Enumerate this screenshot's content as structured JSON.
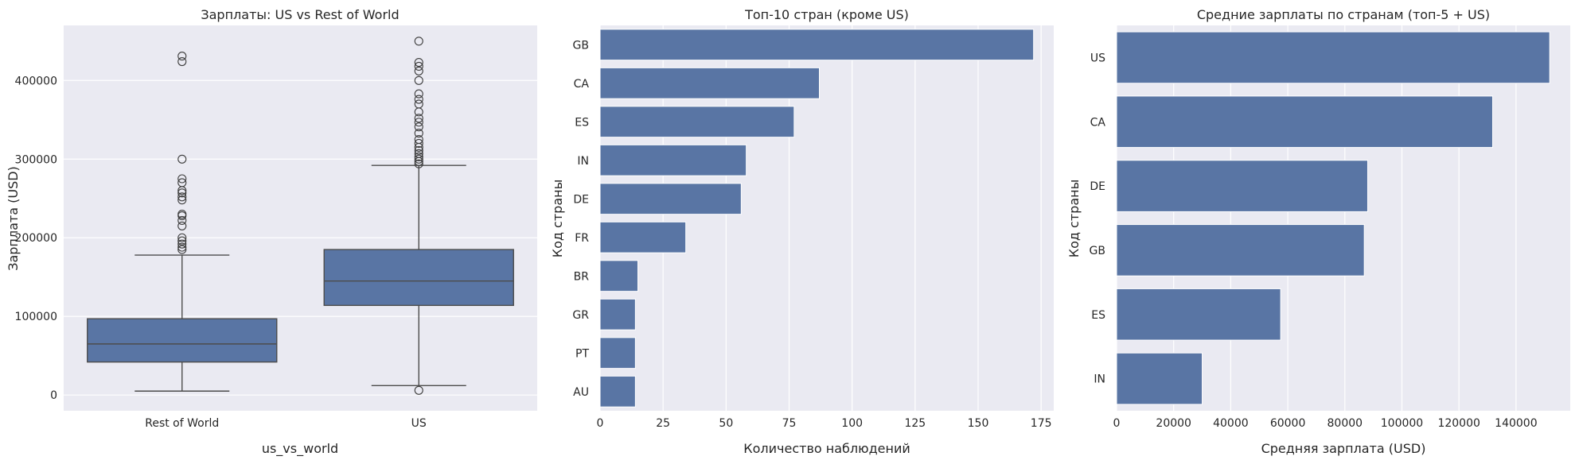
{
  "chart_data": [
    {
      "type": "box",
      "title": "Зарплаты: US vs Rest of World",
      "xlabel": "us_vs_world",
      "ylabel": "Зарплата (USD)",
      "ylim": [
        -20000,
        470000
      ],
      "yticks": [
        0,
        100000,
        200000,
        300000,
        400000
      ],
      "categories": [
        "Rest of World",
        "US"
      ],
      "boxes": [
        {
          "category": "Rest of World",
          "whisker_low": 5000,
          "q1": 42000,
          "median": 65000,
          "q3": 97000,
          "whisker_high": 178000,
          "outliers": [
            185000,
            188000,
            192000,
            196000,
            200000,
            215000,
            222000,
            228000,
            230000,
            248000,
            252000,
            257000,
            260000,
            270000,
            275000,
            300000,
            424000,
            431000
          ]
        },
        {
          "category": "US",
          "whisker_low": 12000,
          "q1": 114000,
          "median": 145000,
          "q3": 185000,
          "whisker_high": 292000,
          "outliers": [
            6000,
            294000,
            297000,
            300000,
            303000,
            307000,
            311000,
            315000,
            320000,
            325000,
            333000,
            341000,
            347000,
            352000,
            360000,
            370000,
            376000,
            383000,
            400000,
            412000,
            418000,
            423000,
            450000
          ]
        }
      ],
      "grid": true,
      "legend": "none"
    },
    {
      "type": "bar",
      "orientation": "horizontal",
      "title": "Топ-10 стран (кроме US)",
      "xlabel": "Количество наблюдений",
      "ylabel": "Код страны",
      "categories": [
        "GB",
        "CA",
        "ES",
        "IN",
        "DE",
        "FR",
        "BR",
        "GR",
        "PT",
        "AU"
      ],
      "values": [
        172,
        87,
        77,
        58,
        56,
        34,
        15,
        14,
        14,
        14
      ],
      "xlim": [
        0,
        180
      ],
      "xticks": [
        0,
        25,
        50,
        75,
        100,
        125,
        150,
        175
      ],
      "grid": true,
      "legend": "none"
    },
    {
      "type": "bar",
      "orientation": "horizontal",
      "title": "Средние зарплаты по странам (топ-5 + US)",
      "xlabel": "Средняя зарплата (USD)",
      "ylabel": "Код страны",
      "categories": [
        "US",
        "CA",
        "DE",
        "GB",
        "ES",
        "IN"
      ],
      "values": [
        151800,
        131800,
        88000,
        86800,
        57500,
        30000
      ],
      "xlim": [
        0,
        159000
      ],
      "xticks": [
        0,
        20000,
        40000,
        60000,
        80000,
        100000,
        120000,
        140000
      ],
      "grid": true,
      "legend": "none"
    }
  ],
  "colors": {
    "plot_background": "#eaeaf2",
    "bar_fill": "#5975a4",
    "box_line": "#4c4c4c"
  }
}
